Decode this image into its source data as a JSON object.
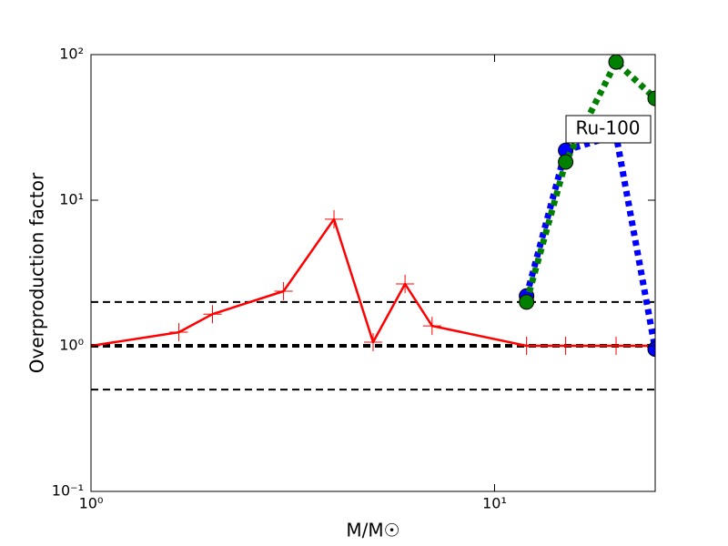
{
  "chart_data": {
    "type": "line",
    "title": null,
    "xlabel": "M/M☉",
    "ylabel": "Overproduction factor",
    "xscale": "log",
    "yscale": "log",
    "xlim": [
      1,
      25
    ],
    "ylim": [
      0.1,
      100
    ],
    "xticks": [
      {
        "value": 1,
        "label": "10⁰"
      },
      {
        "value": 10,
        "label": "10¹"
      }
    ],
    "yticks": [
      {
        "value": 0.1,
        "label": "10⁻¹"
      },
      {
        "value": 1,
        "label": "10⁰"
      },
      {
        "value": 10,
        "label": "10¹"
      },
      {
        "value": 100,
        "label": "10²"
      }
    ],
    "reference_lines": [
      {
        "value": 2,
        "width": 2
      },
      {
        "value": 1,
        "width": 4
      },
      {
        "value": 0.5,
        "width": 2
      }
    ],
    "series": [
      {
        "color": "#ff0000",
        "linestyle": "solid",
        "marker": "+",
        "x": [
          1,
          1.65,
          2,
          3,
          4,
          5,
          6,
          7,
          12,
          15,
          20,
          25
        ],
        "values": [
          1,
          1.24,
          1.65,
          2.37,
          7.4,
          1.06,
          2.66,
          1.37,
          1,
          1,
          1,
          1
        ]
      },
      {
        "color": "#0000ff",
        "linestyle": "dotted",
        "marker": "o",
        "x": [
          12,
          15,
          20,
          25
        ],
        "values": [
          2.2,
          22,
          28,
          0.95
        ]
      },
      {
        "color": "#008000",
        "linestyle": "dotted",
        "marker": "o",
        "x": [
          12,
          15,
          20,
          25
        ],
        "values": [
          2.0,
          18.3,
          89,
          50
        ]
      }
    ],
    "annotation": "Ru-100"
  }
}
